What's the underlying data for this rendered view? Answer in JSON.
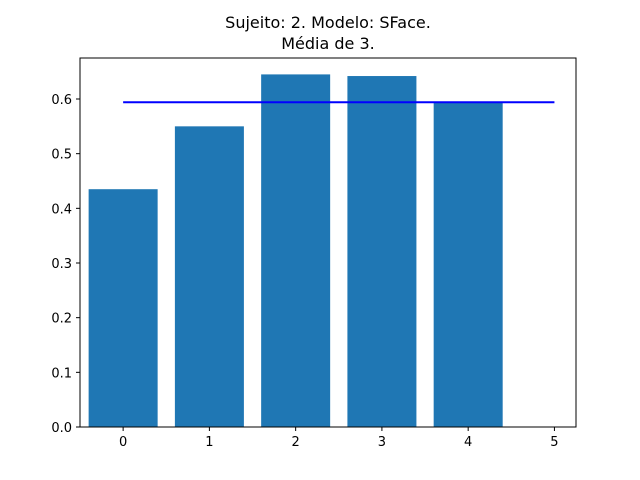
{
  "chart_data": {
    "type": "bar",
    "title": "Sujeito: 2. Modelo: SFace.",
    "subtitle": "Média de 3.",
    "xlabel": "",
    "ylabel": "",
    "x": [
      0,
      1,
      2,
      3,
      4
    ],
    "values": [
      0.435,
      0.55,
      0.645,
      0.642,
      0.595
    ],
    "reference_line": {
      "x_start": 0,
      "x_end": 5,
      "y": 0.594,
      "color": "#0000ff"
    },
    "xlim": [
      -0.5,
      5.25
    ],
    "ylim": [
      0.0,
      0.675
    ],
    "xticks": [
      "0",
      "1",
      "2",
      "3",
      "4",
      "5"
    ],
    "yticks": [
      "0.0",
      "0.1",
      "0.2",
      "0.3",
      "0.4",
      "0.5",
      "0.6"
    ],
    "grid": false,
    "bar_color": "#1f77b4"
  }
}
